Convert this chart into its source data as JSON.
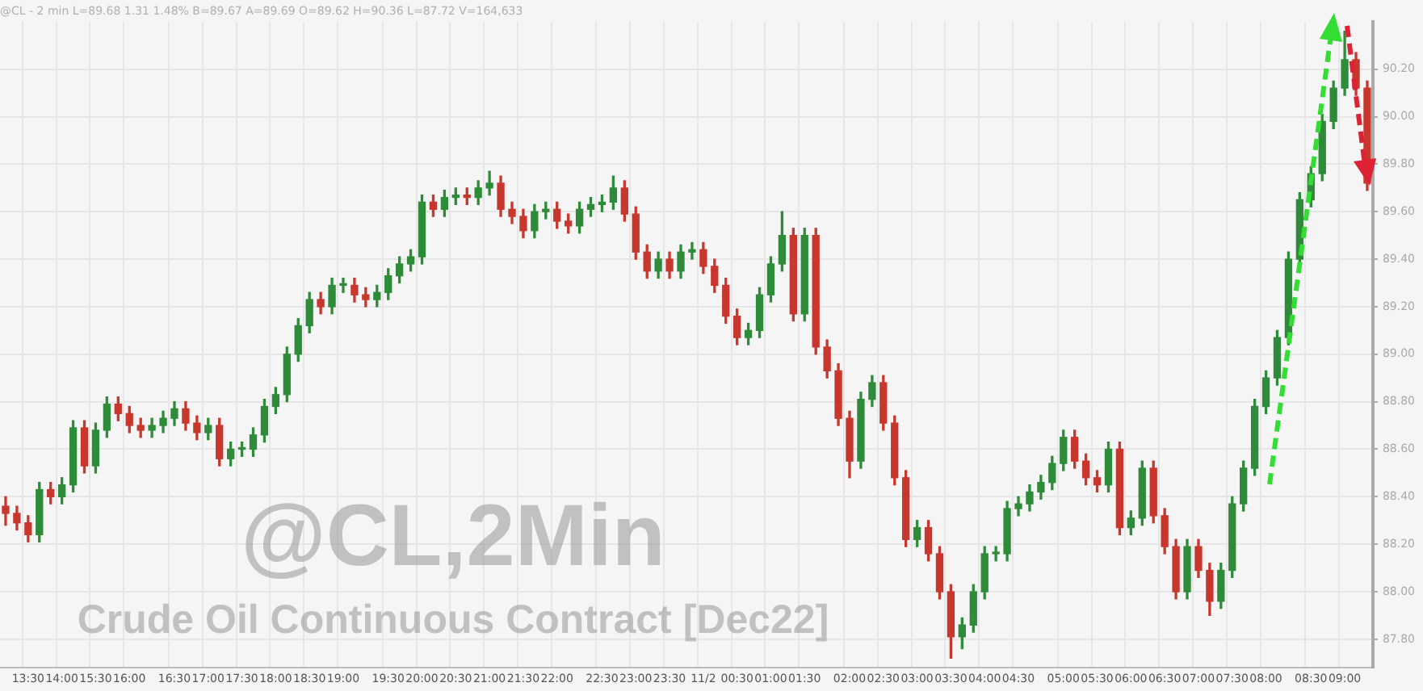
{
  "chart_data": {
    "type": "candlestick",
    "title": "@CL,2Min",
    "subtitle": "@CL - 2 min L=89.68 1.31 1.48% B=89.67 A=89.69 O=89.62 H=90.36 L=87.72 V=164,633",
    "annotations": [
      "Crude Oil Continuous Contract [Dec22]"
    ],
    "categories": [
      null,
      null,
      "13:30",
      null,
      null,
      "14:00",
      null,
      null,
      "15:30",
      null,
      null,
      "16:00",
      null,
      null,
      null,
      "16:30",
      null,
      null,
      "17:00",
      null,
      null,
      "17:30",
      null,
      null,
      "18:00",
      null,
      null,
      "18:30",
      null,
      null,
      "19:00",
      null,
      null,
      null,
      "19:30",
      null,
      null,
      "20:00",
      null,
      null,
      "20:30",
      null,
      null,
      "21:00",
      null,
      null,
      "21:30",
      null,
      null,
      "22:00",
      null,
      null,
      null,
      "22:30",
      null,
      null,
      "23:00",
      null,
      null,
      "23:30",
      null,
      null,
      "11/2",
      null,
      null,
      "00:30",
      null,
      null,
      "01:00",
      null,
      null,
      "01:30",
      null,
      null,
      null,
      "02:00",
      null,
      null,
      "02:30",
      null,
      null,
      "03:00",
      null,
      null,
      "03:30",
      null,
      null,
      "04:00",
      null,
      null,
      "04:30",
      null,
      null,
      null,
      "05:00",
      null,
      null,
      "05:30",
      null,
      null,
      "06:00",
      null,
      null,
      "06:30",
      null,
      null,
      "07:00",
      null,
      null,
      "07:30",
      null,
      null,
      "08:00",
      null,
      null,
      null,
      "08:30",
      null,
      null,
      "09:00",
      null,
      null
    ],
    "ohlc": [
      [
        88.36,
        88.4,
        88.28,
        88.33
      ],
      [
        88.33,
        88.36,
        88.26,
        88.29
      ],
      [
        88.29,
        88.32,
        88.21,
        88.24
      ],
      [
        88.24,
        88.46,
        88.21,
        88.43
      ],
      [
        88.43,
        88.46,
        88.37,
        88.4
      ],
      [
        88.4,
        88.48,
        88.37,
        88.45
      ],
      [
        88.45,
        88.72,
        88.42,
        88.69
      ],
      [
        88.69,
        88.72,
        88.5,
        88.53
      ],
      [
        88.53,
        88.71,
        88.5,
        88.68
      ],
      [
        88.68,
        88.82,
        88.65,
        88.79
      ],
      [
        88.79,
        88.82,
        88.72,
        88.75
      ],
      [
        88.75,
        88.78,
        88.67,
        88.7
      ],
      [
        88.7,
        88.73,
        88.65,
        88.68
      ],
      [
        88.68,
        88.73,
        88.65,
        88.7
      ],
      [
        88.7,
        88.76,
        88.67,
        88.73
      ],
      [
        88.73,
        88.8,
        88.7,
        88.77
      ],
      [
        88.77,
        88.8,
        88.68,
        88.71
      ],
      [
        88.71,
        88.74,
        88.64,
        88.67
      ],
      [
        88.67,
        88.73,
        88.64,
        88.7
      ],
      [
        88.7,
        88.73,
        88.53,
        88.56
      ],
      [
        88.56,
        88.63,
        88.53,
        88.6
      ],
      [
        88.6,
        88.63,
        88.57,
        88.6
      ],
      [
        88.6,
        88.69,
        88.57,
        88.66
      ],
      [
        88.66,
        88.81,
        88.63,
        88.78
      ],
      [
        88.78,
        88.86,
        88.75,
        88.83
      ],
      [
        88.83,
        89.03,
        88.8,
        89.0
      ],
      [
        89.0,
        89.15,
        88.97,
        89.12
      ],
      [
        89.12,
        89.26,
        89.09,
        89.23
      ],
      [
        89.23,
        89.26,
        89.17,
        89.2
      ],
      [
        89.2,
        89.32,
        89.17,
        89.29
      ],
      [
        89.29,
        89.32,
        89.26,
        89.29
      ],
      [
        89.29,
        89.32,
        89.22,
        89.25
      ],
      [
        89.25,
        89.28,
        89.2,
        89.23
      ],
      [
        89.23,
        89.29,
        89.2,
        89.26
      ],
      [
        89.26,
        89.36,
        89.23,
        89.33
      ],
      [
        89.33,
        89.41,
        89.3,
        89.38
      ],
      [
        89.38,
        89.44,
        89.35,
        89.41
      ],
      [
        89.41,
        89.67,
        89.38,
        89.64
      ],
      [
        89.64,
        89.67,
        89.58,
        89.61
      ],
      [
        89.61,
        89.69,
        89.58,
        89.66
      ],
      [
        89.66,
        89.7,
        89.63,
        89.67
      ],
      [
        89.67,
        89.7,
        89.63,
        89.66
      ],
      [
        89.66,
        89.73,
        89.63,
        89.7
      ],
      [
        89.7,
        89.77,
        89.67,
        89.72
      ],
      [
        89.72,
        89.75,
        89.58,
        89.61
      ],
      [
        89.61,
        89.64,
        89.55,
        89.58
      ],
      [
        89.58,
        89.61,
        89.49,
        89.52
      ],
      [
        89.52,
        89.63,
        89.49,
        89.6
      ],
      [
        89.6,
        89.64,
        89.57,
        89.61
      ],
      [
        89.61,
        89.64,
        89.53,
        89.56
      ],
      [
        89.56,
        89.59,
        89.51,
        89.54
      ],
      [
        89.54,
        89.64,
        89.51,
        89.61
      ],
      [
        89.61,
        89.66,
        89.58,
        89.63
      ],
      [
        89.63,
        89.67,
        89.6,
        89.64
      ],
      [
        89.64,
        89.75,
        89.61,
        89.7
      ],
      [
        89.7,
        89.73,
        89.56,
        89.59
      ],
      [
        89.59,
        89.62,
        89.4,
        89.43
      ],
      [
        89.43,
        89.46,
        89.32,
        89.35
      ],
      [
        89.35,
        89.43,
        89.32,
        89.4
      ],
      [
        89.4,
        89.43,
        89.32,
        89.35
      ],
      [
        89.35,
        89.46,
        89.32,
        89.43
      ],
      [
        89.43,
        89.47,
        89.4,
        89.44
      ],
      [
        89.44,
        89.47,
        89.34,
        89.37
      ],
      [
        89.37,
        89.4,
        89.26,
        89.29
      ],
      [
        89.29,
        89.32,
        89.13,
        89.16
      ],
      [
        89.16,
        89.19,
        89.04,
        89.07
      ],
      [
        89.07,
        89.13,
        89.04,
        89.1
      ],
      [
        89.1,
        89.28,
        89.07,
        89.25
      ],
      [
        89.25,
        89.41,
        89.22,
        89.38
      ],
      [
        89.38,
        89.6,
        89.35,
        89.5
      ],
      [
        89.5,
        89.53,
        89.14,
        89.17
      ],
      [
        89.17,
        89.53,
        89.14,
        89.5
      ],
      [
        89.5,
        89.53,
        89.0,
        89.03
      ],
      [
        89.03,
        89.06,
        88.9,
        88.93
      ],
      [
        88.93,
        88.96,
        88.7,
        88.73
      ],
      [
        88.73,
        88.76,
        88.48,
        88.55
      ],
      [
        88.55,
        88.84,
        88.52,
        88.81
      ],
      [
        88.81,
        88.91,
        88.78,
        88.88
      ],
      [
        88.88,
        88.91,
        88.68,
        88.71
      ],
      [
        88.71,
        88.74,
        88.45,
        88.48
      ],
      [
        88.48,
        88.51,
        88.19,
        88.22
      ],
      [
        88.22,
        88.3,
        88.19,
        88.27
      ],
      [
        88.27,
        88.3,
        88.13,
        88.16
      ],
      [
        88.16,
        88.19,
        87.97,
        88.0
      ],
      [
        88.0,
        88.03,
        87.72,
        87.81
      ],
      [
        87.81,
        87.89,
        87.76,
        87.86
      ],
      [
        87.86,
        88.03,
        87.83,
        88.0
      ],
      [
        88.0,
        88.19,
        87.97,
        88.16
      ],
      [
        88.16,
        88.19,
        88.13,
        88.16
      ],
      [
        88.16,
        88.38,
        88.13,
        88.35
      ],
      [
        88.35,
        88.4,
        88.32,
        88.37
      ],
      [
        88.37,
        88.45,
        88.34,
        88.42
      ],
      [
        88.42,
        88.49,
        88.39,
        88.46
      ],
      [
        88.46,
        88.57,
        88.43,
        88.54
      ],
      [
        88.54,
        88.68,
        88.51,
        88.65
      ],
      [
        88.65,
        88.68,
        88.52,
        88.55
      ],
      [
        88.55,
        88.58,
        88.45,
        88.48
      ],
      [
        88.48,
        88.51,
        88.42,
        88.45
      ],
      [
        88.45,
        88.63,
        88.42,
        88.6
      ],
      [
        88.6,
        88.63,
        88.24,
        88.27
      ],
      [
        88.27,
        88.34,
        88.24,
        88.31
      ],
      [
        88.31,
        88.55,
        88.28,
        88.52
      ],
      [
        88.52,
        88.55,
        88.29,
        88.32
      ],
      [
        88.32,
        88.35,
        88.16,
        88.19
      ],
      [
        88.19,
        88.22,
        87.97,
        88.0
      ],
      [
        88.0,
        88.22,
        87.97,
        88.19
      ],
      [
        88.19,
        88.22,
        88.06,
        88.09
      ],
      [
        88.09,
        88.12,
        87.9,
        87.96
      ],
      [
        87.96,
        88.12,
        87.93,
        88.09
      ],
      [
        88.09,
        88.4,
        88.06,
        88.37
      ],
      [
        88.37,
        88.55,
        88.34,
        88.52
      ],
      [
        88.52,
        88.81,
        88.49,
        88.78
      ],
      [
        88.78,
        88.93,
        88.75,
        88.9
      ],
      [
        88.9,
        89.1,
        88.87,
        89.07
      ],
      [
        89.07,
        89.43,
        89.04,
        89.4
      ],
      [
        89.4,
        89.68,
        89.37,
        89.65
      ],
      [
        89.65,
        89.79,
        89.62,
        89.76
      ],
      [
        89.76,
        90.01,
        89.73,
        89.98
      ],
      [
        89.98,
        90.15,
        89.95,
        90.12
      ],
      [
        90.12,
        90.36,
        90.09,
        90.24
      ],
      [
        90.24,
        90.27,
        90.09,
        90.12
      ],
      [
        90.12,
        90.15,
        89.69,
        89.72
      ]
    ],
    "colors": [
      "#c8372d",
      "#c8372d",
      "#c8372d",
      "#2e8b3a",
      "#c8372d",
      "#2e8b3a",
      "#2e8b3a",
      "#c8372d",
      "#2e8b3a",
      "#2e8b3a",
      "#c8372d",
      "#c8372d",
      "#c8372d",
      "#2e8b3a",
      "#2e8b3a",
      "#2e8b3a",
      "#c8372d",
      "#c8372d",
      "#2e8b3a",
      "#c8372d",
      "#2e8b3a",
      "#2e8b3a",
      "#2e8b3a",
      "#2e8b3a",
      "#2e8b3a",
      "#2e8b3a",
      "#2e8b3a",
      "#2e8b3a",
      "#c8372d",
      "#2e8b3a",
      "#2e8b3a",
      "#c8372d",
      "#c8372d",
      "#2e8b3a",
      "#2e8b3a",
      "#2e8b3a",
      "#2e8b3a",
      "#2e8b3a",
      "#c8372d",
      "#2e8b3a",
      "#2e8b3a",
      "#c8372d",
      "#2e8b3a",
      "#2e8b3a",
      "#c8372d",
      "#c8372d",
      "#c8372d",
      "#2e8b3a",
      "#2e8b3a",
      "#c8372d",
      "#c8372d",
      "#2e8b3a",
      "#2e8b3a",
      "#2e8b3a",
      "#2e8b3a",
      "#c8372d",
      "#c8372d",
      "#c8372d",
      "#2e8b3a",
      "#c8372d",
      "#2e8b3a",
      "#2e8b3a",
      "#c8372d",
      "#c8372d",
      "#c8372d",
      "#c8372d",
      "#2e8b3a",
      "#2e8b3a",
      "#2e8b3a",
      "#2e8b3a",
      "#c8372d",
      "#2e8b3a",
      "#c8372d",
      "#c8372d",
      "#c8372d",
      "#c8372d",
      "#2e8b3a",
      "#2e8b3a",
      "#c8372d",
      "#c8372d",
      "#c8372d",
      "#2e8b3a",
      "#c8372d",
      "#c8372d",
      "#c8372d",
      "#2e8b3a",
      "#2e8b3a",
      "#2e8b3a",
      "#2e8b3a",
      "#2e8b3a",
      "#2e8b3a",
      "#2e8b3a",
      "#2e8b3a",
      "#2e8b3a",
      "#2e8b3a",
      "#c8372d",
      "#c8372d",
      "#c8372d",
      "#2e8b3a",
      "#c8372d",
      "#2e8b3a",
      "#2e8b3a",
      "#c8372d",
      "#c8372d",
      "#c8372d",
      "#2e8b3a",
      "#c8372d",
      "#c8372d",
      "#2e8b3a",
      "#2e8b3a",
      "#2e8b3a",
      "#2e8b3a",
      "#2e8b3a",
      "#2e8b3a",
      "#2e8b3a",
      "#2e8b3a",
      "#2e8b3a",
      "#2e8b3a",
      "#2e8b3a",
      "#2e8b3a",
      "#c8372d",
      "#c8372d"
    ],
    "ylim": [
      87.68,
      90.4
    ],
    "yticks": [
      {
        "value": 87.8,
        "label": "87.80"
      },
      {
        "value": 88.0,
        "label": "88.00"
      },
      {
        "value": 88.2,
        "label": "88.20"
      },
      {
        "value": 88.4,
        "label": "88.40"
      },
      {
        "value": 88.6,
        "label": "88.60"
      },
      {
        "value": 88.8,
        "label": "88.80"
      },
      {
        "value": 89.0,
        "label": "89.00"
      },
      {
        "value": 89.2,
        "label": "89.20"
      },
      {
        "value": 89.4,
        "label": "89.40"
      },
      {
        "value": 89.6,
        "label": "89.60"
      },
      {
        "value": 89.8,
        "label": "89.80"
      },
      {
        "value": 90.0,
        "label": "90.00"
      },
      {
        "value": 90.2,
        "label": "90.20"
      }
    ],
    "grid": true,
    "legend": false
  }
}
